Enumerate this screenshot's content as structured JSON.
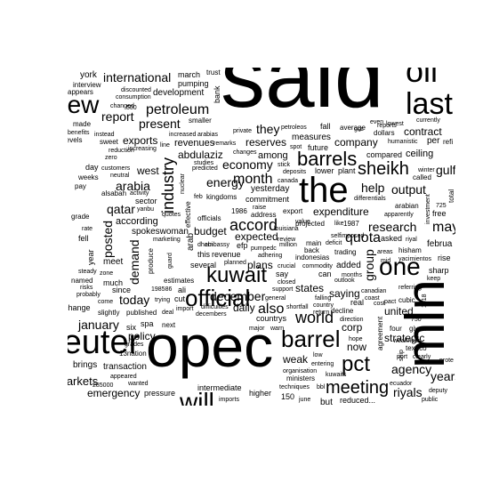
{
  "words": {
    "said": "said",
    "opec": "opec",
    "mln": "mln",
    "the": "the",
    "official": "official",
    "reuter": "reuter",
    "oil": "oil",
    "last": "last",
    "barrel": "barrel",
    "kuwait": "kuwait",
    "one": "one",
    "new": "new",
    "will": "will",
    "barrels": "barrels",
    "meeting": "meeting",
    "sheikh": "sheikh",
    "pct": "pct",
    "world": "world",
    "industry": "industry",
    "petroleum": "petroleum",
    "accord": "accord",
    "international": "international",
    "report": "report",
    "present": "present",
    "economy": "economy",
    "month": "month",
    "energy": "energy",
    "arabia": "arabia",
    "qatar": "qatar",
    "today": "today",
    "december": "december",
    "also": "also",
    "output": "output",
    "help": "help",
    "quota": "quota",
    "research": "research",
    "gulf": "gulf",
    "may": "may",
    "group": "group",
    "expenditure": "expenditure",
    "reserves": "reserves",
    "company": "company",
    "they": "they",
    "contract": "contract",
    "emergency": "emergency",
    "agency": "agency",
    "years": "years",
    "riyals": "riyals",
    "january": "january",
    "posted": "posted",
    "demand": "demand",
    "policy": "policy",
    "budget": "budget",
    "daily": "daily",
    "expected": "expected",
    "plans": "plans",
    "saying": "saying",
    "united": "united",
    "strategic": "strategic",
    "weak": "weak",
    "now": "now",
    "corp": "corp",
    "states": "states",
    "exports": "exports",
    "revenues": "revenues",
    "abdulaziz": "abdulaziz",
    "among": "among",
    "measures": "measures",
    "ceiling": "ceiling",
    "west": "west",
    "according": "according",
    "spokeswoman": "spokeswoman",
    "development": "development",
    "international_top": "interview",
    "york": "york",
    "march": "march",
    "trust": "trust",
    "pumping": "pumping",
    "bank": "bank",
    "appears": "appears",
    "discounted": "discounted",
    "consumption": "consumption",
    "changed": "changed",
    "made": "made",
    "benefits": "benefits",
    "levels": "levels",
    "instead": "instead",
    "smaller": "smaller",
    "increased": "increased",
    "arabias": "arabias",
    "remarks": "remarks",
    "private": "private",
    "petroleos": "petroleos",
    "even": "even",
    "lowest": "lowest",
    "currently": "currently",
    "average": "average",
    "fall": "fall",
    "dollars": "dollars",
    "humanistic": "humanistic",
    "per": "per",
    "refi": "refi",
    "future": "future",
    "compared": "compared",
    "sweet": "sweet",
    "reduction": "reduction",
    "increasing": "increasing",
    "line": "line",
    "changes": "changes",
    "studies": "studies",
    "predicted": "predicted",
    "day": "day",
    "customers": "customers",
    "neutral": "neutral",
    "weeks": "weeks",
    "pay": "pay",
    "spot": "spot",
    "stick": "stick",
    "deposits": "deposits",
    "lower": "lower",
    "plant": "plant",
    "called": "called",
    "winter": "winter",
    "kingdoms": "kingdoms",
    "commitment": "commitment",
    "yesterday": "yesterday",
    "canada": "canada",
    "differentials": "differentials",
    "arabian": "arabian",
    "apparently": "apparently",
    "free": "free",
    "sector": "sector",
    "yanbu": "yanbu",
    "activity": "activity",
    "alsabah": "alsabah",
    "grade": "grade",
    "rate": "rate",
    "fell": "fell",
    "year": "year",
    "meet": "meet",
    "much": "much",
    "since": "since",
    "risks": "risks",
    "named": "named",
    "probably": "probably",
    "come": "come",
    "change": "change",
    "slightly": "slightly",
    "published": "published",
    "deal": "deal",
    "trying": "trying",
    "cut": "cut",
    "import": "import",
    "difficulties": "difficulties",
    "decembers": "decembers",
    "six": "six",
    "spa": "spa",
    "next": "next",
    "major": "major",
    "warn": "warn",
    "marketing": "marketing",
    "produce": "produce",
    "guard": "guard",
    "estimates": "estimates",
    "several": "several",
    "revenue": "revenue",
    "planned": "planned",
    "crucial": "crucial",
    "support": "support",
    "closed": "closed",
    "outlook": "outlook",
    "added": "added",
    "main": "main",
    "deficit": "deficit",
    "trading": "trading",
    "areas": "areas",
    "hisham": "hisham",
    "mid": "mid",
    "yacimientos": "yacimientos",
    "rise": "rise",
    "february": "februa",
    "sharp": "sharp",
    "keep": "keep",
    "referring": "referring",
    "countrys": "countrys",
    "general": "general",
    "falling": "falling",
    "country": "country",
    "return": "return",
    "decline": "decline",
    "real": "real",
    "coast": "coast",
    "cost": "cost",
    "pact": "pact",
    "cubic": "cubic",
    "canadian": "canadian",
    "direction": "direction",
    "hope": "hope",
    "four": "four",
    "given": "given",
    "texaco": "texaco",
    "port": "port",
    "clearly": "clearly",
    "protest": "prote",
    "entering": "entering",
    "low": "low",
    "organisation": "organisation",
    "ministers": "ministers",
    "kuwaits": "kuwaits",
    "ecuador": "ecuador",
    "weakness": "weakness",
    "deputy": "deputy",
    "public": "public",
    "reduced": "reduced...",
    "higher": "higher",
    "june": "june",
    "but": "but",
    "techniques": "techniques",
    "intermediate": "intermediate",
    "imports": "imports",
    "pressure": "pressure",
    "wanted": "wanted",
    "appeared": "appeared",
    "brings": "brings",
    "transaction": "transaction",
    "markets": "markets",
    "nation": "13nation",
    "grades": "grades",
    "value": "value",
    "projected": "projected",
    "louisiana": "louisiana",
    "selfimposed": "selfimposed",
    "like": "like",
    "1987": "1987",
    "riyal": "riyal",
    "asked": "asked",
    "review": "review",
    "say": "say",
    "can": "can",
    "dhabi": "dhabi",
    "embassy": "embassy",
    "efp": "efp",
    "pumpedc": "pumpedc",
    "million": "million",
    "export": "export",
    "raise": "raise",
    "address": "address",
    "1986": "1986",
    "quotes": "quotes",
    "officials": "officials",
    "effective": "effective",
    "arab": "arab",
    "this": "this",
    "nuclear": "nuclear",
    "feb": "feb",
    "indonesias": "indonesias",
    "commodity": "commodity",
    "months": "months",
    "back": "back",
    "adhering": "adhering",
    "ali": "ali",
    "198586": "198586",
    "cfr": "cfr",
    "ship": "ship",
    "agreement": "agreement",
    "shortfall": "shortfall",
    "prices": "prices",
    "guidelines": "guidelines",
    "entitled": "entitled",
    "net": "net",
    "zone": "zone",
    "750": "750",
    "725": "725",
    "500": "500",
    "150": "150",
    "1518": "1518",
    "285000": "285000",
    "zero": "zero",
    "ended": "ended",
    "steady": "steady",
    "bbl": "bbl",
    "investment": "investment",
    "total": "total",
    "reports": "reports",
    "gcc": "gcc"
  }
}
